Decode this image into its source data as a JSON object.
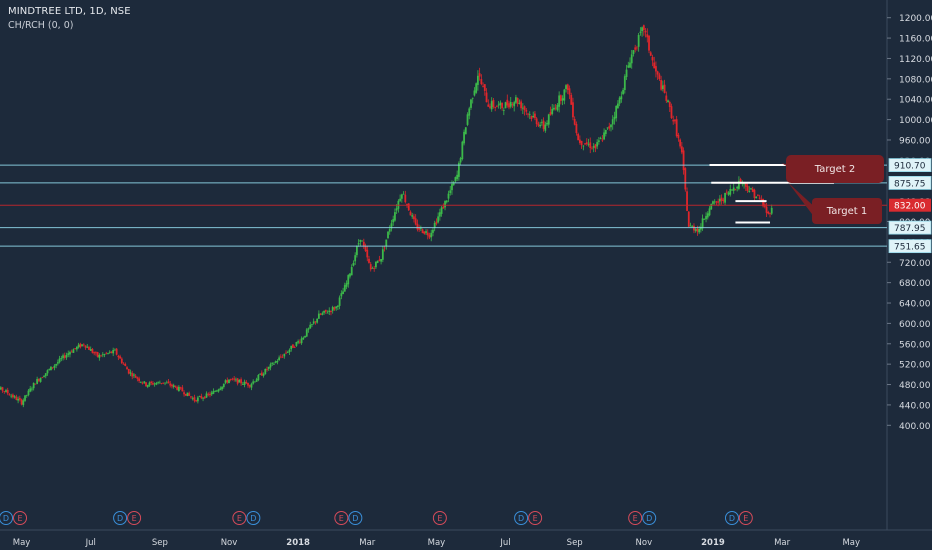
{
  "header": {
    "title": "MINDTREE LTD, 1D, NSE",
    "indicator": "CH/RCH (0, 0)"
  },
  "colors": {
    "background": "#1d2a3b",
    "up_candle": "#3cb94a",
    "down_candle": "#e0262b",
    "hline": "#8fd6e8",
    "price_line": "#c6262c",
    "callout": "#7a1f24",
    "text": "#d7dbe1"
  },
  "chart_data": {
    "type": "candlestick",
    "y_axis": {
      "min": 400,
      "max": 1200,
      "ticks": [
        "1200.00",
        "1160.00",
        "1120.00",
        "1080.00",
        "1040.00",
        "1000.00",
        "960.00",
        "800.00",
        "720.00",
        "680.00",
        "640.00",
        "600.00",
        "560.00",
        "520.00",
        "480.00",
        "440.00",
        "400.00"
      ],
      "tick_values": [
        1200,
        1160,
        1120,
        1080,
        1040,
        1000,
        960,
        800,
        720,
        680,
        640,
        600,
        560,
        520,
        480,
        440,
        400
      ],
      "ghost_ticks": [
        {
          "value": 920,
          "label": "920.00"
        },
        {
          "value": 840,
          "label": "840.00"
        },
        {
          "value": 760,
          "label": "760.00"
        }
      ]
    },
    "x_axis": {
      "labels": [
        "May",
        "Jul",
        "Sep",
        "Nov",
        "2018",
        "Mar",
        "May",
        "Jul",
        "Sep",
        "Nov",
        "2019",
        "Mar",
        "May"
      ],
      "bold": [
        "2018",
        "2019"
      ],
      "range_months": [
        0,
        25
      ],
      "label_months": [
        1,
        3,
        5,
        7,
        9,
        11,
        13,
        15,
        17,
        19,
        21,
        23,
        25
      ]
    },
    "levels": [
      {
        "value": 910.7,
        "label": "910.70"
      },
      {
        "value": 875.75,
        "label": "875.75"
      },
      {
        "value": 787.95,
        "label": "787.95"
      },
      {
        "value": 751.65,
        "label": "751.65"
      }
    ],
    "last_price": {
      "value": 832.0,
      "label": "832.00"
    },
    "callouts": [
      {
        "label": "Target 2",
        "anchor_month": 22.4,
        "anchor_value": 911
      },
      {
        "label": "Target 1",
        "anchor_month": 22.6,
        "anchor_value": 876
      }
    ],
    "markers": [
      {
        "month": 0.55,
        "letters": [
          "D",
          "E"
        ]
      },
      {
        "month": 3.85,
        "letters": [
          "D",
          "E"
        ]
      },
      {
        "month": 7.3,
        "letters": [
          "E",
          "D"
        ]
      },
      {
        "month": 10.25,
        "letters": [
          "E",
          "D"
        ]
      },
      {
        "month": 13.1,
        "letters": [
          "E"
        ]
      },
      {
        "month": 15.45,
        "letters": [
          "D",
          "E"
        ]
      },
      {
        "month": 18.75,
        "letters": [
          "E",
          "D"
        ]
      },
      {
        "month": 21.55,
        "letters": [
          "D"
        ]
      },
      {
        "month": 21.95,
        "letters": [
          "E"
        ]
      }
    ],
    "price_path": [
      {
        "month": 0.0,
        "close": 480
      },
      {
        "month": 0.5,
        "close": 468
      },
      {
        "month": 1.0,
        "close": 445
      },
      {
        "month": 1.4,
        "close": 485
      },
      {
        "month": 1.9,
        "close": 515
      },
      {
        "month": 2.4,
        "close": 545
      },
      {
        "month": 2.8,
        "close": 560
      },
      {
        "month": 3.2,
        "close": 535
      },
      {
        "month": 3.7,
        "close": 545
      },
      {
        "month": 4.1,
        "close": 505
      },
      {
        "month": 4.6,
        "close": 480
      },
      {
        "month": 5.1,
        "close": 485
      },
      {
        "month": 5.6,
        "close": 470
      },
      {
        "month": 6.0,
        "close": 450
      },
      {
        "month": 6.5,
        "close": 462
      },
      {
        "month": 7.0,
        "close": 490
      },
      {
        "month": 7.6,
        "close": 480
      },
      {
        "month": 8.1,
        "close": 510
      },
      {
        "month": 8.6,
        "close": 540
      },
      {
        "month": 9.1,
        "close": 570
      },
      {
        "month": 9.6,
        "close": 615
      },
      {
        "month": 10.1,
        "close": 632
      },
      {
        "month": 10.4,
        "close": 678
      },
      {
        "month": 10.8,
        "close": 770
      },
      {
        "month": 11.1,
        "close": 705
      },
      {
        "month": 11.4,
        "close": 730
      },
      {
        "month": 11.7,
        "close": 800
      },
      {
        "month": 12.0,
        "close": 860
      },
      {
        "month": 12.4,
        "close": 790
      },
      {
        "month": 12.8,
        "close": 775
      },
      {
        "month": 13.2,
        "close": 830
      },
      {
        "month": 13.6,
        "close": 890
      },
      {
        "month": 13.9,
        "close": 1010
      },
      {
        "month": 14.2,
        "close": 1090
      },
      {
        "month": 14.5,
        "close": 1030
      },
      {
        "month": 14.9,
        "close": 1025
      },
      {
        "month": 15.3,
        "close": 1040
      },
      {
        "month": 15.7,
        "close": 1010
      },
      {
        "month": 16.1,
        "close": 985
      },
      {
        "month": 16.5,
        "close": 1035
      },
      {
        "month": 16.8,
        "close": 1065
      },
      {
        "month": 17.1,
        "close": 960
      },
      {
        "month": 17.6,
        "close": 945
      },
      {
        "month": 18.0,
        "close": 985
      },
      {
        "month": 18.3,
        "close": 1040
      },
      {
        "month": 18.6,
        "close": 1120
      },
      {
        "month": 19.0,
        "close": 1180
      },
      {
        "month": 19.3,
        "close": 1100
      },
      {
        "month": 19.6,
        "close": 1050
      },
      {
        "month": 19.9,
        "close": 990
      },
      {
        "month": 20.1,
        "close": 930
      },
      {
        "month": 20.3,
        "close": 790
      },
      {
        "month": 20.6,
        "close": 785
      },
      {
        "month": 20.9,
        "close": 830
      },
      {
        "month": 21.2,
        "close": 840
      },
      {
        "month": 21.5,
        "close": 860
      },
      {
        "month": 21.8,
        "close": 880
      },
      {
        "month": 22.1,
        "close": 860
      },
      {
        "month": 22.4,
        "close": 840
      },
      {
        "month": 22.6,
        "close": 812
      },
      {
        "month": 22.7,
        "close": 832
      }
    ]
  }
}
